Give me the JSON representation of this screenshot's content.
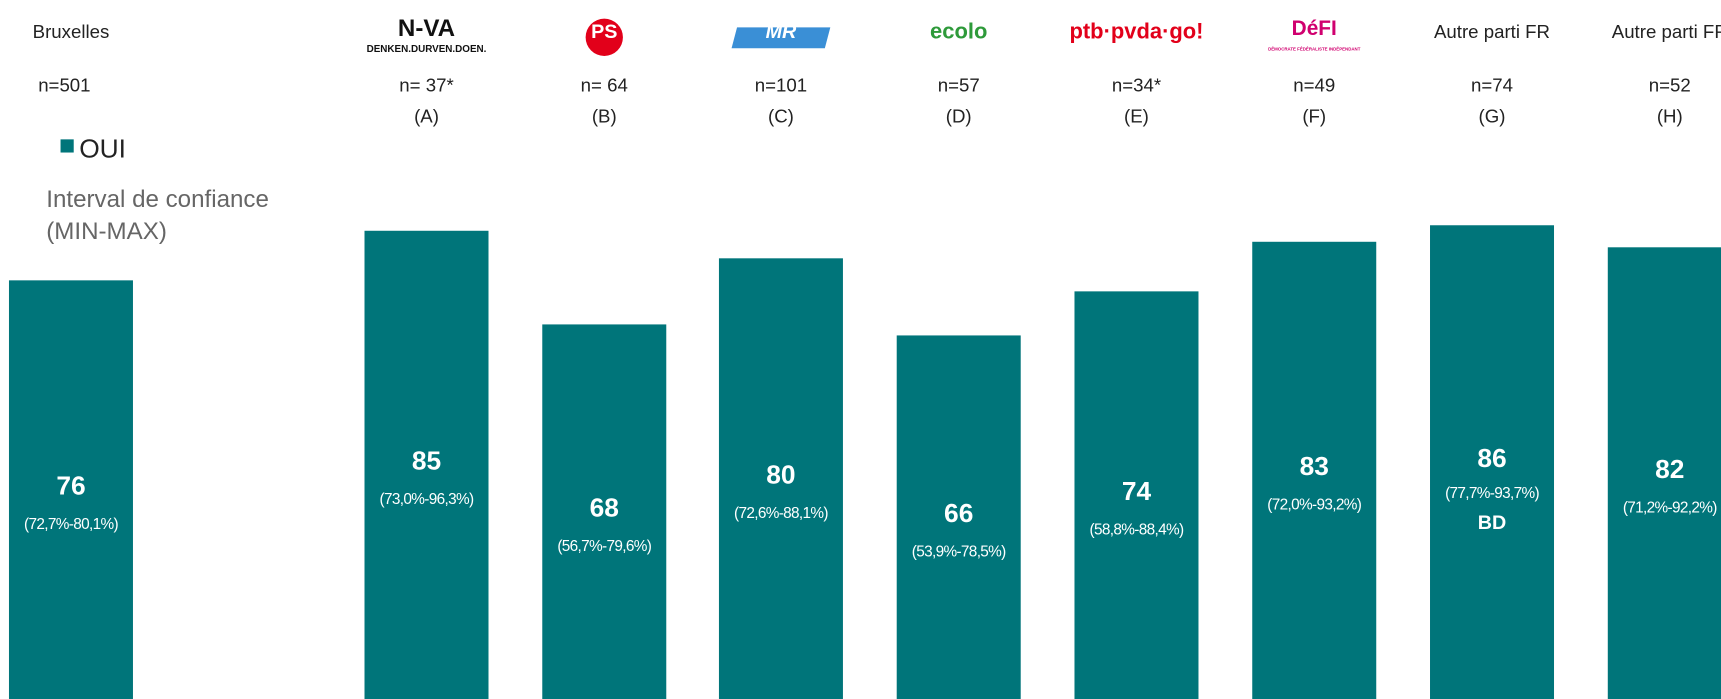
{
  "chart_data": {
    "type": "bar",
    "legend_label": "OUI",
    "legend_note": [
      "Interval de confiance",
      "(MIN-MAX)"
    ],
    "color": "#00757a",
    "categories": [
      "Bruxelles",
      "N-VA",
      "PS",
      "MR",
      "ecolo",
      "ptb·pvda·go!",
      "DéFI",
      "Autre parti FR",
      "Autre parti FR"
    ],
    "category_subtexts": [
      null,
      "DENKEN.DURVEN.DOEN.",
      null,
      null,
      null,
      null,
      "DÉMOCRATE FÉDÉRALISTE INDÉPENDANT",
      null,
      null
    ],
    "n_labels": [
      "n=501",
      "n= 37*",
      "n= 64",
      "n=101",
      "n=57",
      "n=34*",
      "n=49",
      "n=74",
      "n=52"
    ],
    "group_letters": [
      null,
      "(A)",
      "(B)",
      "(C)",
      "(D)",
      "(E)",
      "(F)",
      "(G)",
      "(H)"
    ],
    "values": [
      76,
      85,
      68,
      80,
      66,
      74,
      83,
      86,
      82
    ],
    "ci_labels": [
      "(72,7%-80,1%)",
      "(73,0%-96,3%)",
      "(56,7%-79,6%)",
      "(72,6%-88,1%)",
      "(53,9%-78,5%)",
      "(58,8%-88,4%)",
      "(72,0%-93,2%)",
      "(77,7%-93,7%)",
      "(71,2%-92,2%)"
    ],
    "significance": [
      null,
      null,
      null,
      null,
      null,
      null,
      null,
      "BD",
      null
    ]
  }
}
